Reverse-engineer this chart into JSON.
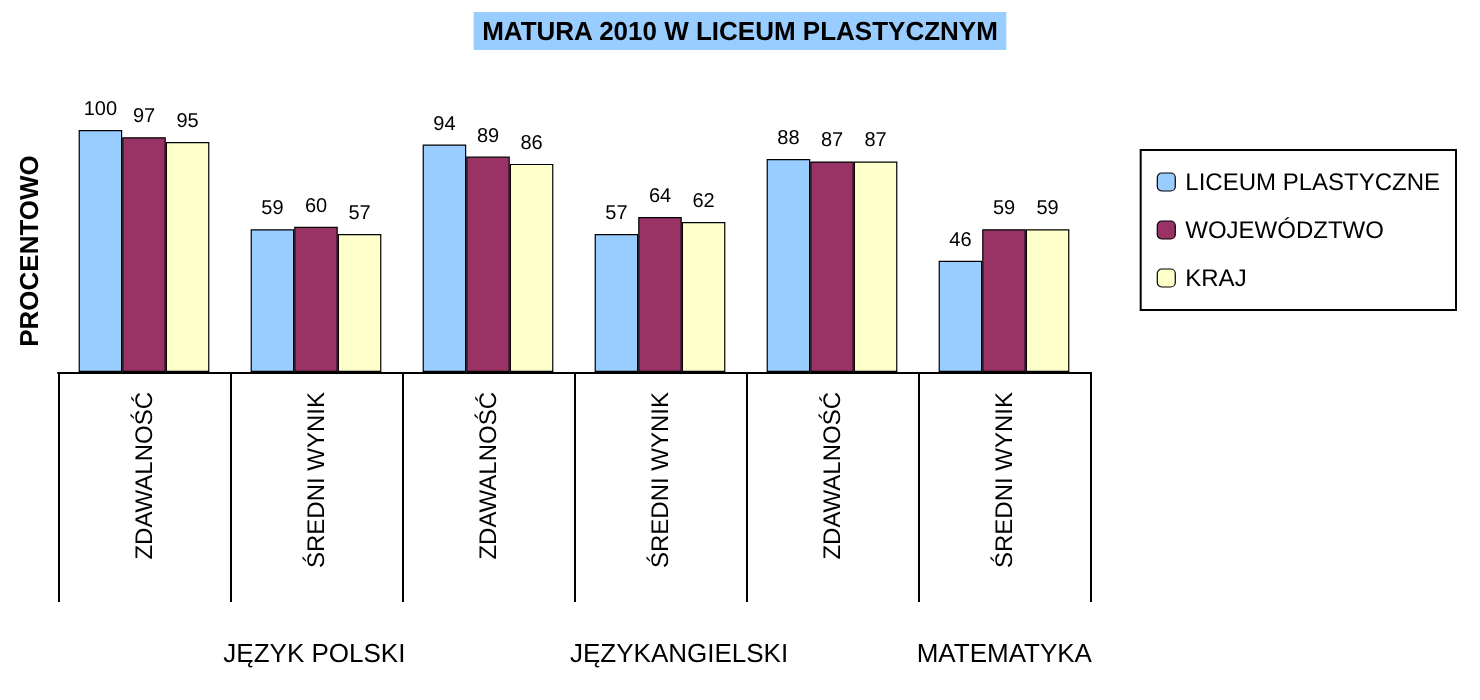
{
  "chart_data": {
    "type": "bar",
    "title": "MATURA 2010 W LICEUM PLASTYCZNYM",
    "ylabel": "PROCENTOWO",
    "categories": [
      "ZDAWALNOŚĆ",
      "ŚREDNI WYNIK",
      "ZDAWALNOŚĆ",
      "ŚREDNI WYNIK",
      "ZDAWALNOŚĆ",
      "ŚREDNI WYNIK"
    ],
    "annotations": [
      "JĘZYK POLSKI",
      "JĘZYKANGIELSKI",
      "MATEMATYKA"
    ],
    "series": [
      {
        "name": "LICEUM PLASTYCZNE",
        "color": "#99ccff",
        "values": [
          100,
          59,
          94,
          57,
          88,
          46
        ]
      },
      {
        "name": "WOJEWÓDZTWO",
        "color": "#993366",
        "values": [
          97,
          60,
          89,
          64,
          87,
          59
        ]
      },
      {
        "name": "KRAJ",
        "color": "#ffffcc",
        "values": [
          95,
          57,
          86,
          62,
          87,
          59
        ]
      }
    ],
    "data_labels": true,
    "legend": "right",
    "grid": false
  }
}
